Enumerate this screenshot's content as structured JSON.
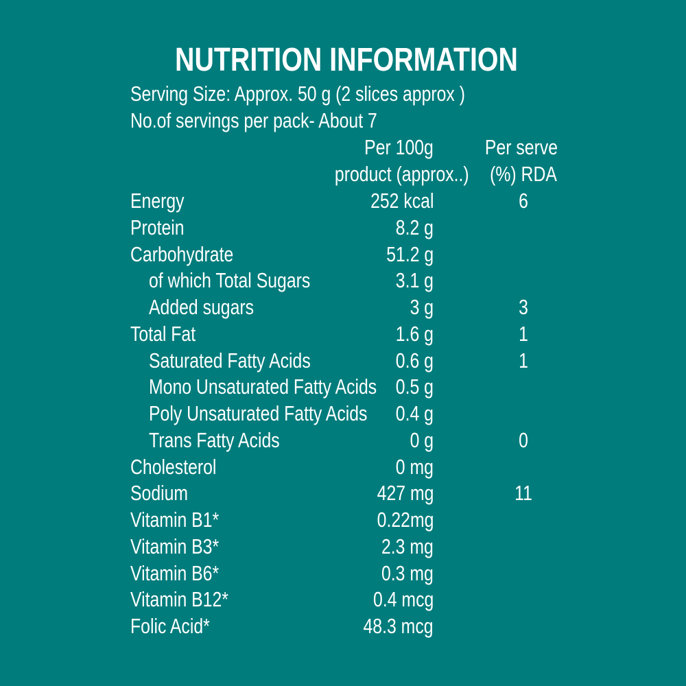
{
  "title": "NUTRITION INFORMATION",
  "serving_size": "Serving Size: Approx. 50 g (2 slices approx )",
  "servings_per_pack": "No.of servings per pack- About 7",
  "columns": {
    "per100_line1": "Per 100g",
    "per100_line2": "product (approx..)",
    "rda_line1": "Per serve",
    "rda_line2": "(%) RDA"
  },
  "rows": [
    {
      "label": "Energy",
      "value": "252 kcal",
      "rda": "6",
      "indent": false
    },
    {
      "label": "Protein",
      "value": "8.2 g",
      "rda": "",
      "indent": false
    },
    {
      "label": "Carbohydrate",
      "value": "51.2 g",
      "rda": "",
      "indent": false
    },
    {
      "label": "of which Total Sugars",
      "value": "3.1 g",
      "rda": "",
      "indent": true
    },
    {
      "label": "Added sugars",
      "value": "3 g",
      "rda": "3",
      "indent": true
    },
    {
      "label": "Total Fat",
      "value": "1.6 g",
      "rda": "1",
      "indent": false
    },
    {
      "label": "Saturated Fatty Acids",
      "value": "0.6 g",
      "rda": "1",
      "indent": true
    },
    {
      "label": "Mono Unsaturated Fatty Acids",
      "value": "0.5 g",
      "rda": "",
      "indent": true
    },
    {
      "label": "Poly Unsaturated Fatty Acids",
      "value": "0.4 g",
      "rda": "",
      "indent": true
    },
    {
      "label": "Trans Fatty Acids",
      "value": "0 g",
      "rda": "0",
      "indent": true
    },
    {
      "label": "Cholesterol",
      "value": "0 mg",
      "rda": "",
      "indent": false
    },
    {
      "label": "Sodium",
      "value": "427 mg",
      "rda": "11",
      "indent": false
    },
    {
      "label": "Vitamin B1*",
      "value": "0.22mg",
      "rda": "",
      "indent": false
    },
    {
      "label": "Vitamin B3*",
      "value": "2.3 mg",
      "rda": "",
      "indent": false
    },
    {
      "label": "Vitamin B6*",
      "value": "0.3 mg",
      "rda": "",
      "indent": false
    },
    {
      "label": "Vitamin B12*",
      "value": "0.4 mcg",
      "rda": "",
      "indent": false
    },
    {
      "label": "Folic Acid*",
      "value": "48.3 mcg",
      "rda": "",
      "indent": false
    }
  ],
  "colors": {
    "background": "#017c7c",
    "text": "#ffffff"
  }
}
